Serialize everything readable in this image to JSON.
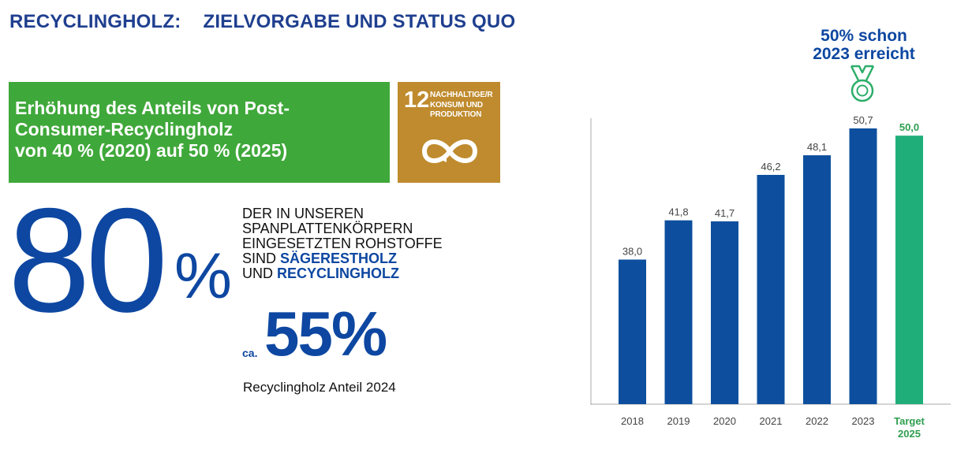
{
  "title": {
    "part1": "RECYCLINGHOLZ:",
    "part2": "ZIELVORGABE UND STATUS QUO"
  },
  "goal_box": {
    "lines": [
      "Erhöhung des Anteils von Post-",
      "Consumer-Recyclingholz",
      "von 40 % (2020) auf 50 % (2025)"
    ],
    "color": "#3fa83a"
  },
  "sdg": {
    "number": "12",
    "lines": [
      "NACHHALTIGE/R",
      "KONSUM UND",
      "PRODUKTION"
    ],
    "icon": "infinity-icon",
    "color": "#bf8b2e"
  },
  "stat_main": {
    "value": "80",
    "unit": "%",
    "text": {
      "line1": "DER IN UNSEREN",
      "line2": "SPANPLATTENKÖRPERN",
      "line3": "EINGESETZTEN ROHSTOFFE",
      "line4_prefix": "SIND ",
      "line4_highlight": "SÄGERESTHOLZ",
      "line5_prefix": "UND ",
      "line5_highlight": "RECYCLINGHOLZ"
    }
  },
  "stat_secondary": {
    "prefix": "ca.",
    "value": "55%",
    "label": "Recyclingholz Anteil 2024"
  },
  "callout": {
    "line1": "50% schon",
    "line2": "2023 erreicht",
    "icon": "medal-icon"
  },
  "colors": {
    "title": "#1f3f8f",
    "accent": "#0d47a1",
    "bar": "#0d4f9e",
    "target_bar": "#1fae7a",
    "target_label": "#2e9e4f"
  },
  "chart_data": {
    "type": "bar",
    "categories": [
      "2018",
      "2019",
      "2020",
      "2021",
      "2022",
      "2023",
      "Target 2025"
    ],
    "values": [
      38.0,
      41.8,
      41.7,
      46.2,
      48.1,
      50.7,
      50.0
    ],
    "data_labels": [
      "38,0",
      "41,8",
      "41,7",
      "46,2",
      "48,1",
      "50,7",
      "50,0"
    ],
    "highlight_category": "Target 2025",
    "ylim": [
      24,
      58
    ],
    "grid": false,
    "title": "",
    "xlabel": "",
    "ylabel": ""
  }
}
